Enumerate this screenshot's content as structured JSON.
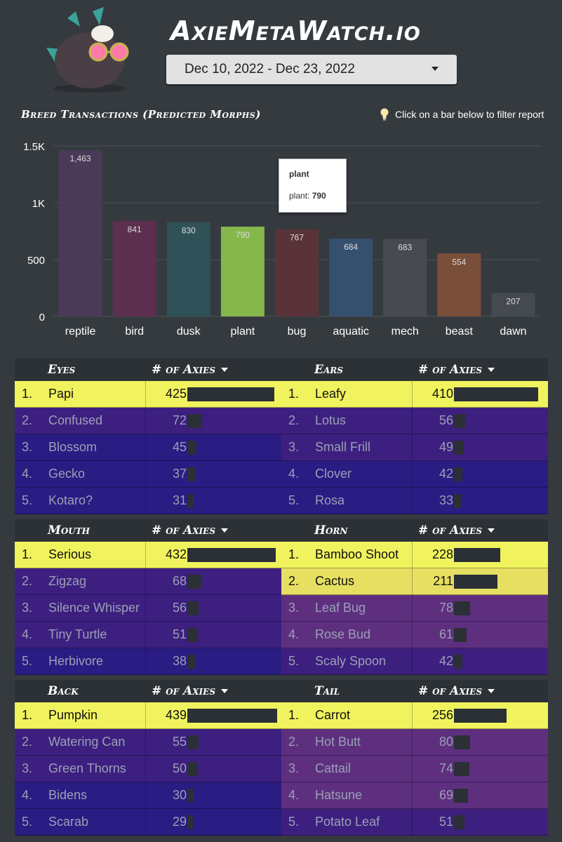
{
  "header": {
    "site_title": "AxieMetaWatch.io",
    "date_range": "Dec 10, 2022 - Dec 23, 2022"
  },
  "chart_section": {
    "title": "Breed Transactions (Predicted Morphs)",
    "hint": "Click on a bar below to filter report",
    "tooltip": {
      "title": "plant",
      "label": "plant: ",
      "value": "790"
    }
  },
  "chart_data": {
    "type": "bar",
    "title": "Breed Transactions (Predicted Morphs)",
    "categories": [
      "reptile",
      "bird",
      "dusk",
      "plant",
      "bug",
      "aquatic",
      "mech",
      "beast",
      "dawn"
    ],
    "values": [
      1463,
      841,
      830,
      790,
      767,
      684,
      683,
      554,
      207
    ],
    "value_labels": [
      "1,463",
      "841",
      "830",
      "790",
      "767",
      "684",
      "683",
      "554",
      "207"
    ],
    "colors": [
      "#4a3a57",
      "#5c2f4f",
      "#2f5158",
      "#86b74d",
      "#5a3339",
      "#34506e",
      "#474b51",
      "#7a4f3a",
      "#454a50"
    ],
    "ylim": [
      0,
      1500
    ],
    "yticks": [
      0,
      500,
      1000,
      1500
    ],
    "ytick_labels": [
      "0",
      "500",
      "1K",
      "1.5K"
    ],
    "grid": true,
    "highlight": "plant"
  },
  "count_header": "# of Axies",
  "colors": {
    "highlight": "#f0f35d",
    "highlight_second": "#e6df62",
    "purple": "#3d1f80",
    "blue": "#2a1c83",
    "magenta": "#5e2f7f",
    "bar": "#2a3035"
  },
  "tables": [
    {
      "title": "Eyes",
      "rows": [
        {
          "rank": "1.",
          "name": "Papi",
          "count": 425,
          "style": "top"
        },
        {
          "rank": "2.",
          "name": "Confused",
          "count": 72,
          "style": "purple"
        },
        {
          "rank": "3.",
          "name": "Blossom",
          "count": 45,
          "style": "blue"
        },
        {
          "rank": "4.",
          "name": "Gecko",
          "count": 37,
          "style": "blue"
        },
        {
          "rank": "5.",
          "name": "Kotaro?",
          "count": 31,
          "style": "blue"
        }
      ]
    },
    {
      "title": "Ears",
      "rows": [
        {
          "rank": "1.",
          "name": "Leafy",
          "count": 410,
          "style": "top"
        },
        {
          "rank": "2.",
          "name": "Lotus",
          "count": 56,
          "style": "purple"
        },
        {
          "rank": "3.",
          "name": "Small Frill",
          "count": 49,
          "style": "purple"
        },
        {
          "rank": "4.",
          "name": "Clover",
          "count": 42,
          "style": "blue"
        },
        {
          "rank": "5.",
          "name": "Rosa",
          "count": 33,
          "style": "blue"
        }
      ]
    },
    {
      "title": "Mouth",
      "rows": [
        {
          "rank": "1.",
          "name": "Serious",
          "count": 432,
          "style": "top"
        },
        {
          "rank": "2.",
          "name": "Zigzag",
          "count": 68,
          "style": "purple"
        },
        {
          "rank": "3.",
          "name": "Silence Whisper",
          "count": 56,
          "style": "purple"
        },
        {
          "rank": "4.",
          "name": "Tiny Turtle",
          "count": 51,
          "style": "purple"
        },
        {
          "rank": "5.",
          "name": "Herbivore",
          "count": 38,
          "style": "blue"
        }
      ]
    },
    {
      "title": "Horn",
      "rows": [
        {
          "rank": "1.",
          "name": "Bamboo Shoot",
          "count": 228,
          "style": "top"
        },
        {
          "rank": "2.",
          "name": "Cactus",
          "count": 211,
          "style": "second"
        },
        {
          "rank": "3.",
          "name": "Leaf Bug",
          "count": 78,
          "style": "magenta"
        },
        {
          "rank": "4.",
          "name": "Rose Bud",
          "count": 61,
          "style": "magenta"
        },
        {
          "rank": "5.",
          "name": "Scaly Spoon",
          "count": 42,
          "style": "purple"
        }
      ]
    },
    {
      "title": "Back",
      "rows": [
        {
          "rank": "1.",
          "name": "Pumpkin",
          "count": 439,
          "style": "top"
        },
        {
          "rank": "2.",
          "name": "Watering Can",
          "count": 55,
          "style": "purple"
        },
        {
          "rank": "3.",
          "name": "Green Thorns",
          "count": 50,
          "style": "purple"
        },
        {
          "rank": "4.",
          "name": "Bidens",
          "count": 30,
          "style": "blue"
        },
        {
          "rank": "5.",
          "name": "Scarab",
          "count": 29,
          "style": "blue"
        }
      ]
    },
    {
      "title": "Tail",
      "rows": [
        {
          "rank": "1.",
          "name": "Carrot",
          "count": 256,
          "style": "top"
        },
        {
          "rank": "2.",
          "name": "Hot Butt",
          "count": 80,
          "style": "magenta"
        },
        {
          "rank": "3.",
          "name": "Cattail",
          "count": 74,
          "style": "magenta"
        },
        {
          "rank": "4.",
          "name": "Hatsune",
          "count": 69,
          "style": "magenta"
        },
        {
          "rank": "5.",
          "name": "Potato Leaf",
          "count": 51,
          "style": "purple"
        }
      ]
    }
  ]
}
